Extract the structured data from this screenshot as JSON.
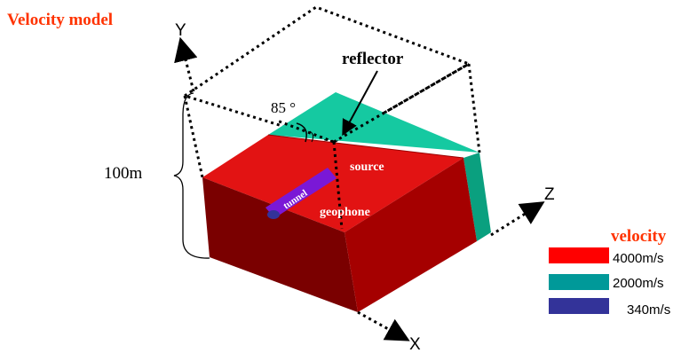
{
  "title": "Velocity model",
  "axes": {
    "x": "X",
    "y": "Y",
    "z": "Z"
  },
  "labels": {
    "reflector": "reflector",
    "angle": "85 °",
    "height": "100m",
    "source": "source",
    "geophone": "geophone",
    "tunnel": "tunnel"
  },
  "legend": {
    "title": "velocity",
    "items": [
      {
        "label": "4000m/s",
        "color": "#ff0000"
      },
      {
        "label": "2000m/s",
        "color": "#009999"
      },
      {
        "label": "340m/s",
        "color": "#333399"
      }
    ]
  },
  "colors": {
    "title": "#ff3300",
    "red_top": "#e21313",
    "red_left": "#7a0000",
    "red_right": "#a50000",
    "teal_top": "#15c9a1",
    "teal_side": "#0aa07f",
    "tunnel": "#7a18d6"
  }
}
